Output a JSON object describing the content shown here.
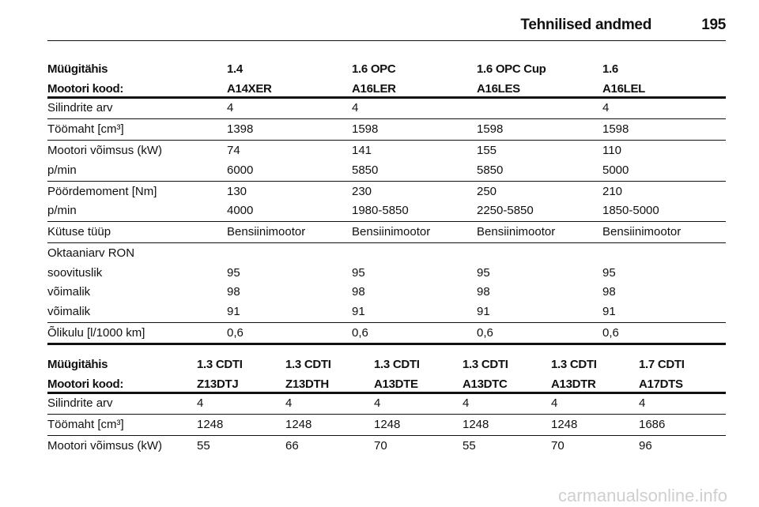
{
  "header": {
    "title": "Tehnilised andmed",
    "page": "195"
  },
  "tables": [
    {
      "header": [
        [
          "Müügitähis",
          "1.4",
          "1.6 OPC",
          "1.6 OPC Cup",
          "1.6"
        ],
        [
          "Mootori kood:",
          "A14XER",
          "A16LER",
          "A16LES",
          "A16LEL"
        ]
      ],
      "groups": [
        [
          [
            "Silindrite arv",
            "4",
            "4",
            null,
            "4"
          ]
        ],
        [
          [
            "Töömaht [cm³]",
            "1398",
            "1598",
            "1598",
            "1598"
          ]
        ],
        [
          [
            "Mootori võimsus (kW)",
            "74",
            "141",
            "155",
            "110"
          ],
          [
            "p/min",
            "6000",
            "5850",
            "5850",
            "5000"
          ]
        ],
        [
          [
            "Pöördemoment [Nm]",
            "130",
            "230",
            "250",
            "210"
          ],
          [
            "p/min",
            "4000",
            "1980-5850",
            "2250-5850",
            "1850-5000"
          ]
        ],
        [
          [
            "Kütuse tüüp",
            "Bensiinimootor",
            "Bensiinimootor",
            "Bensiinimootor",
            "Bensiinimootor"
          ]
        ],
        [
          [
            "Oktaaniarv RON",
            null,
            null,
            null,
            null
          ],
          [
            "soovituslik",
            "95",
            "95",
            "95",
            "95"
          ],
          [
            "võimalik",
            "98",
            "98",
            "98",
            "98"
          ],
          [
            "võimalik",
            "91",
            "91",
            "91",
            "91"
          ]
        ],
        [
          [
            "Õlikulu [l/1000 km]",
            "0,6",
            "0,6",
            "0,6",
            "0,6"
          ]
        ]
      ]
    },
    {
      "header": [
        [
          "Müügitähis",
          "1.3 CDTI",
          "1.3 CDTI",
          "1.3 CDTI",
          "1.3 CDTI",
          "1.3 CDTI",
          "1.7 CDTI"
        ],
        [
          "Mootori kood:",
          "Z13DTJ",
          "Z13DTH",
          "A13DTE",
          "A13DTC",
          "A13DTR",
          "A17DTS"
        ]
      ],
      "groups": [
        [
          [
            "Silindrite arv",
            "4",
            "4",
            "4",
            "4",
            "4",
            "4"
          ]
        ],
        [
          [
            "Töömaht [cm³]",
            "1248",
            "1248",
            "1248",
            "1248",
            "1248",
            "1686"
          ]
        ],
        [
          [
            "Mootori võimsus (kW)",
            "55",
            "66",
            "70",
            "55",
            "70",
            "96"
          ]
        ]
      ]
    }
  ],
  "watermark": "carmanualsonline.info"
}
